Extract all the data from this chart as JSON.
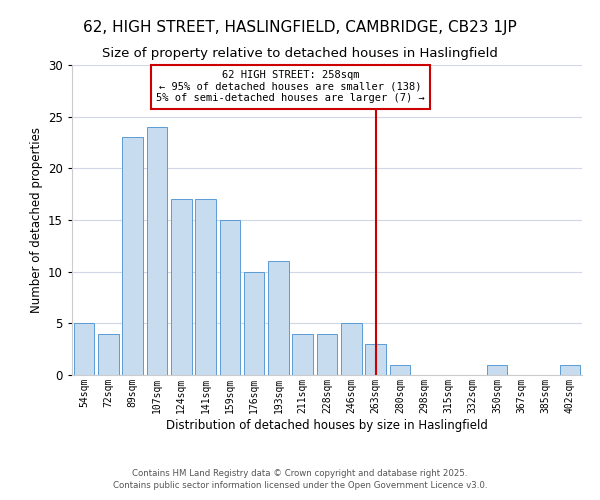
{
  "title": "62, HIGH STREET, HASLINGFIELD, CAMBRIDGE, CB23 1JP",
  "subtitle": "Size of property relative to detached houses in Haslingfield",
  "xlabel": "Distribution of detached houses by size in Haslingfield",
  "ylabel": "Number of detached properties",
  "bar_labels": [
    "54sqm",
    "72sqm",
    "89sqm",
    "107sqm",
    "124sqm",
    "141sqm",
    "159sqm",
    "176sqm",
    "193sqm",
    "211sqm",
    "228sqm",
    "246sqm",
    "263sqm",
    "280sqm",
    "298sqm",
    "315sqm",
    "332sqm",
    "350sqm",
    "367sqm",
    "385sqm",
    "402sqm"
  ],
  "bar_values": [
    5,
    4,
    23,
    24,
    17,
    17,
    15,
    10,
    11,
    4,
    4,
    5,
    3,
    1,
    0,
    0,
    0,
    1,
    0,
    0,
    1
  ],
  "bar_color": "#c8dcf0",
  "bar_edge_color": "#5b9bd5",
  "vline_index": 12,
  "vline_color": "#cc0000",
  "ylim": [
    0,
    30
  ],
  "yticks": [
    0,
    5,
    10,
    15,
    20,
    25,
    30
  ],
  "annotation_title": "62 HIGH STREET: 258sqm",
  "annotation_line1": "← 95% of detached houses are smaller (138)",
  "annotation_line2": "5% of semi-detached houses are larger (7) →",
  "annotation_box_color": "#ffffff",
  "annotation_border_color": "#cc0000",
  "footer_line1": "Contains HM Land Registry data © Crown copyright and database right 2025.",
  "footer_line2": "Contains public sector information licensed under the Open Government Licence v3.0.",
  "background_color": "#ffffff",
  "grid_color": "#d0d8e8",
  "title_fontsize": 11,
  "subtitle_fontsize": 9.5
}
